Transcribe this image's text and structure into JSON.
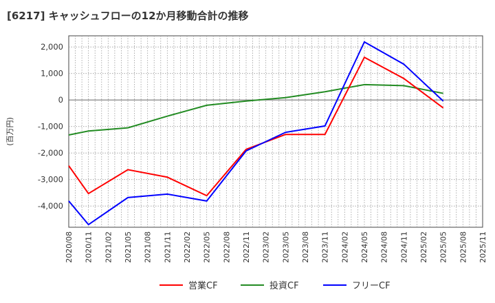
{
  "chart_data": {
    "type": "line",
    "title": "[6217]  キャッシュフローの12か月移動合計の推移",
    "ylabel": "(百万円)",
    "xlabel": "",
    "ylim": [
      -4800,
      2420
    ],
    "yticks": [
      2000,
      1000,
      0,
      -1000,
      -2000,
      -3000,
      -4000
    ],
    "ytick_labels": [
      "2,000",
      "1,000",
      "0",
      "-1,000",
      "-2,000",
      "-3,000",
      "-4,000"
    ],
    "xticks": [
      "2020/08",
      "2020/11",
      "2021/02",
      "2021/05",
      "2021/08",
      "2021/11",
      "2022/02",
      "2022/05",
      "2022/08",
      "2022/11",
      "2023/02",
      "2023/05",
      "2023/08",
      "2023/11",
      "2024/02",
      "2024/05",
      "2024/08",
      "2024/11",
      "2025/02",
      "2025/05",
      "2025/08",
      "2025/11"
    ],
    "x": [
      "2020/08",
      "2020/11",
      "2021/05",
      "2021/11",
      "2022/05",
      "2022/11",
      "2023/05",
      "2023/11",
      "2024/05",
      "2024/11",
      "2025/05"
    ],
    "series": [
      {
        "name": "営業CF",
        "color": "#ff0000",
        "values": [
          -2480,
          -3530,
          -2630,
          -2910,
          -3610,
          -1860,
          -1300,
          -1300,
          1610,
          810,
          -300
        ]
      },
      {
        "name": "投資CF",
        "color": "#228b22",
        "values": [
          -1320,
          -1170,
          -1050,
          -610,
          -200,
          -40,
          90,
          310,
          580,
          540,
          250
        ]
      },
      {
        "name": "フリーCF",
        "color": "#0000ff",
        "values": [
          -3810,
          -4700,
          -3680,
          -3550,
          -3810,
          -1920,
          -1220,
          -980,
          2190,
          1350,
          -40
        ]
      }
    ],
    "grid": true,
    "legend_position": "bottom"
  }
}
